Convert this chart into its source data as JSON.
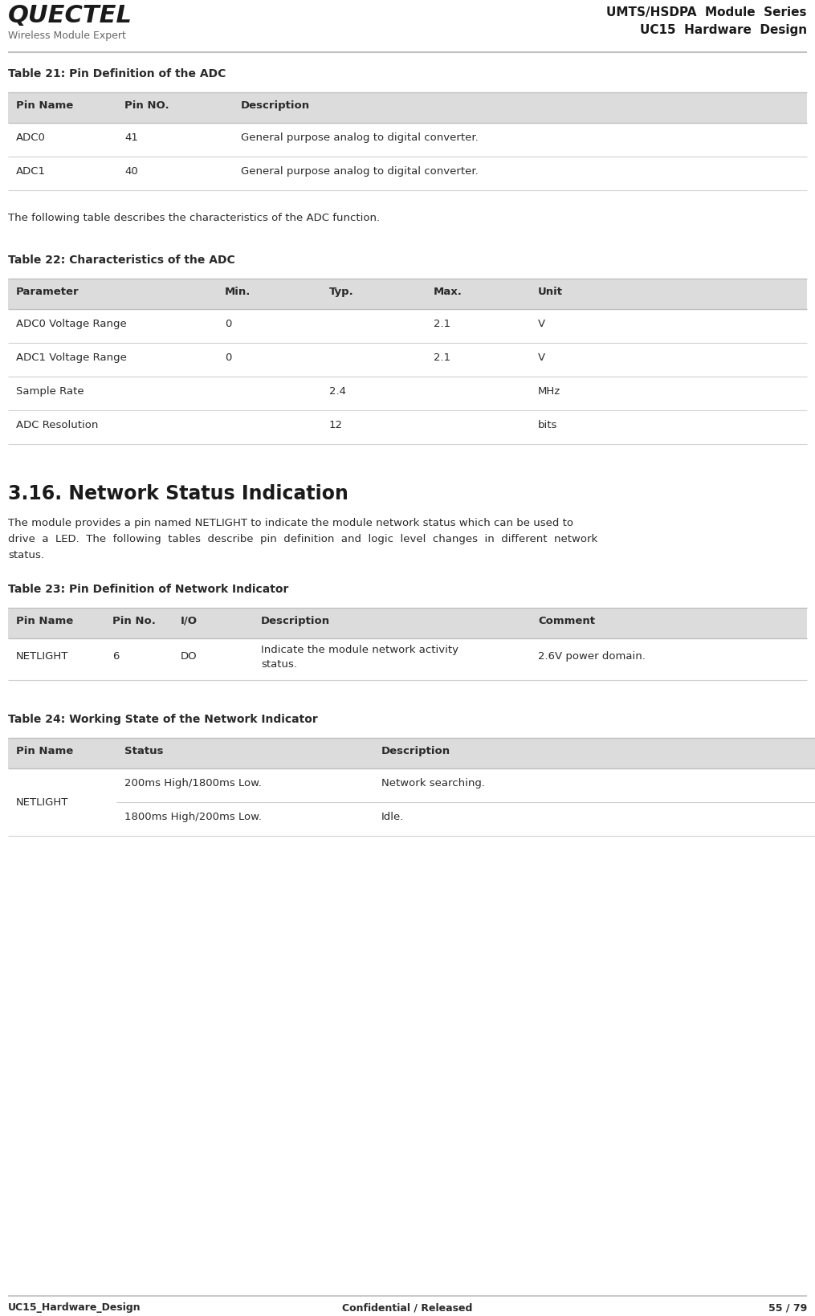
{
  "header_title1": "UMTS/HSDPA  Module  Series",
  "header_title2": "UC15  Hardware  Design",
  "logo_text": "QUECTEL",
  "logo_sub": "Wireless Module Expert",
  "footer_left": "UC15_Hardware_Design",
  "footer_center": "Confidential / Released",
  "footer_right": "55 / 79",
  "table21_title": "Table 21: Pin Definition of the ADC",
  "table21_header": [
    "Pin Name",
    "Pin NO.",
    "Description"
  ],
  "table21_rows": [
    [
      "ADC0",
      "41",
      "General purpose analog to digital converter."
    ],
    [
      "ADC1",
      "40",
      "General purpose analog to digital converter."
    ]
  ],
  "between_text": "The following table describes the characteristics of the ADC function.",
  "table22_title": "Table 22: Characteristics of the ADC",
  "table22_header": [
    "Parameter",
    "Min.",
    "Typ.",
    "Max.",
    "Unit"
  ],
  "table22_rows": [
    [
      "ADC0 Voltage Range",
      "0",
      "",
      "2.1",
      "V"
    ],
    [
      "ADC1 Voltage Range",
      "0",
      "",
      "2.1",
      "V"
    ],
    [
      "Sample Rate",
      "",
      "2.4",
      "",
      "MHz"
    ],
    [
      "ADC Resolution",
      "",
      "12",
      "",
      "bits"
    ]
  ],
  "section_title": "3.16. Network Status Indication",
  "section_line1": "The module provides a pin named NETLIGHT to indicate the module network status which can be used to",
  "section_line2": "drive  a  LED.  The  following  tables  describe  pin  definition  and  logic  level  changes  in  different  network",
  "section_line3": "status.",
  "table23_title": "Table 23: Pin Definition of Network Indicator",
  "table23_header": [
    "Pin Name",
    "Pin No.",
    "I/O",
    "Description",
    "Comment"
  ],
  "table23_rows": [
    [
      "NETLIGHT",
      "6",
      "DO",
      "Indicate the module network activity\nstatus.",
      "2.6V power domain."
    ]
  ],
  "table24_title": "Table 24: Working State of the Network Indicator",
  "table24_header": [
    "Pin Name",
    "Status",
    "Description"
  ],
  "table24_rows": [
    [
      "NETLIGHT",
      "200ms High/1800ms Low.",
      "Network searching."
    ],
    [
      "",
      "1800ms High/200ms Low.",
      "Idle."
    ]
  ],
  "table_header_bg": "#dcdcdc",
  "row_bg_white": "#ffffff",
  "bg_color": "#ffffff",
  "line_color": "#c8c8c8",
  "text_dark": "#2a2a2a",
  "text_gray": "#666666"
}
